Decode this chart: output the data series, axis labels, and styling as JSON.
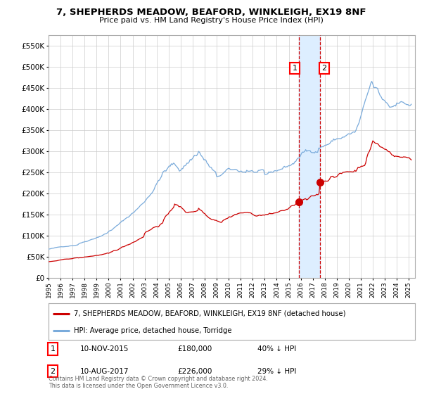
{
  "title": "7, SHEPHERDS MEADOW, BEAFORD, WINKLEIGH, EX19 8NF",
  "subtitle": "Price paid vs. HM Land Registry's House Price Index (HPI)",
  "legend_red": "7, SHEPHERDS MEADOW, BEAFORD, WINKLEIGH, EX19 8NF (detached house)",
  "legend_blue": "HPI: Average price, detached house, Torridge",
  "transaction1_label": "1",
  "transaction1_date": "10-NOV-2015",
  "transaction1_price": 180000,
  "transaction1_pct": "40% ↓ HPI",
  "transaction2_label": "2",
  "transaction2_date": "10-AUG-2017",
  "transaction2_price": 226000,
  "transaction2_pct": "29% ↓ HPI",
  "transaction1_x": 2015.86,
  "transaction2_x": 2017.61,
  "ylim": [
    0,
    575000
  ],
  "xlim_start": 1995.0,
  "xlim_end": 2025.5,
  "background_color": "#ffffff",
  "plot_bg_color": "#ffffff",
  "grid_color": "#cccccc",
  "red_line_color": "#cc0000",
  "blue_line_color": "#7aabdb",
  "vline_color": "#cc0000",
  "vspan_color": "#ddeeff",
  "marker_color": "#cc0000",
  "footnote": "Contains HM Land Registry data © Crown copyright and database right 2024.\nThis data is licensed under the Open Government Licence v3.0."
}
